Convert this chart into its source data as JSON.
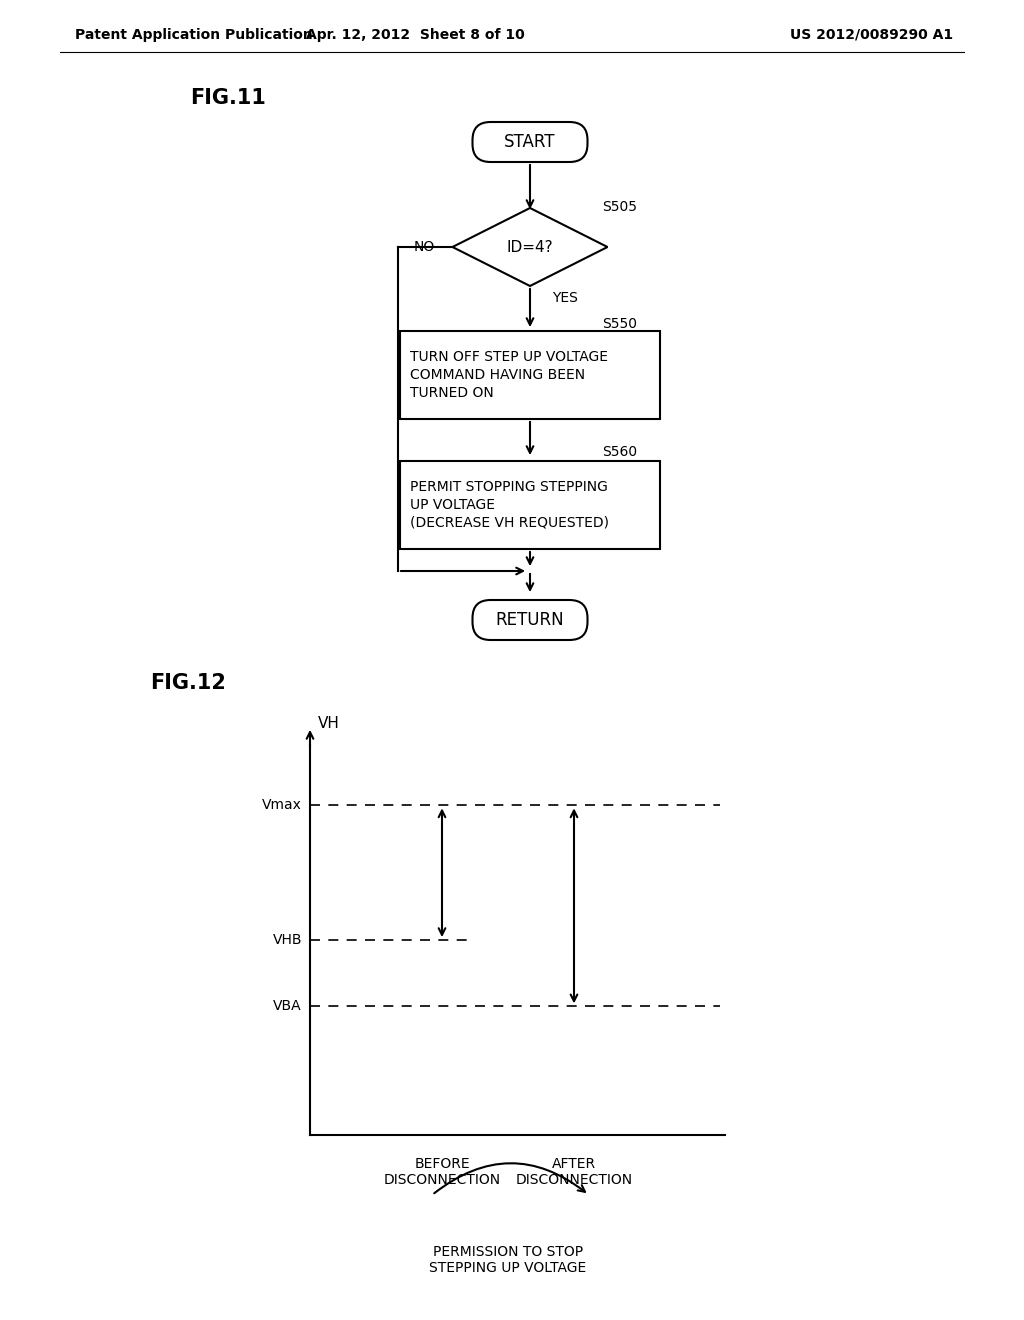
{
  "bg_color": "#ffffff",
  "header_left": "Patent Application Publication",
  "header_center": "Apr. 12, 2012  Sheet 8 of 10",
  "header_right": "US 2012/0089290 A1",
  "fig11_label": "FIG.11",
  "fig12_label": "FIG.12",
  "start_text": "START",
  "diamond_text": "ID=4?",
  "s505_label": "S505",
  "no_label": "NO",
  "yes_label": "YES",
  "box1_lines": [
    "TURN OFF STEP UP VOLTAGE",
    "COMMAND HAVING BEEN",
    "TURNED ON"
  ],
  "s550_label": "S550",
  "box2_lines": [
    "PERMIT STOPPING STEPPING",
    "UP VOLTAGE",
    "(DECREASE VH REQUESTED)"
  ],
  "s560_label": "S560",
  "return_text": "RETURN",
  "vh_label": "VH",
  "vmax_label": "Vmax",
  "vhb_label": "VHB",
  "vba_label": "VBA",
  "before_label": "BEFORE\nDISCONNECTION",
  "after_label": "AFTER\nDISCONNECTION",
  "permission_label": "PERMISSION TO STOP\nSTEPPING UP VOLTAGE",
  "line_color": "#000000",
  "text_color": "#000000"
}
